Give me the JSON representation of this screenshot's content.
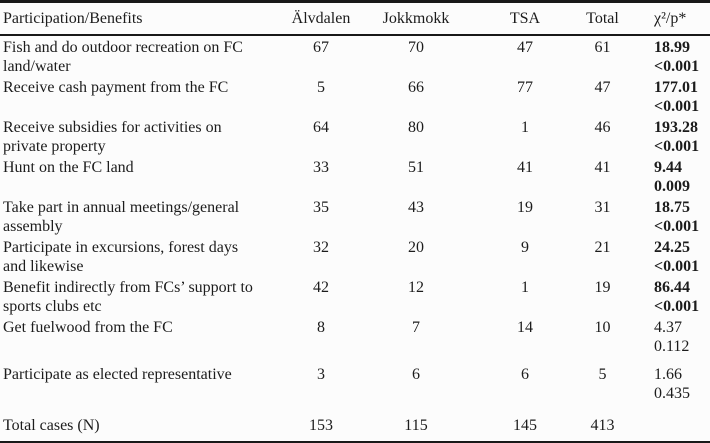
{
  "table": {
    "columns": [
      "Participation/Benefits",
      "Älvdalen",
      "Jokkmokk",
      "TSA",
      "Total",
      "χ²/p*"
    ],
    "rows": [
      {
        "label1": "Fish and do outdoor recreation on FC",
        "label2": "land/water",
        "alvdalen": "67",
        "jokkmokk": "70",
        "tsa": "47",
        "total": "61",
        "chi": "18.99",
        "p": "<0.001",
        "bold": true
      },
      {
        "label1": "Receive cash payment from the FC",
        "label2": "",
        "alvdalen": "5",
        "jokkmokk": "66",
        "tsa": "77",
        "total": "47",
        "chi": "177.01",
        "p": "<0.001",
        "bold": true
      },
      {
        "label1": "Receive subsidies for activities on",
        "label2": "private property",
        "alvdalen": "64",
        "jokkmokk": "80",
        "tsa": "1",
        "total": "46",
        "chi": "193.28",
        "p": "<0.001",
        "bold": true
      },
      {
        "label1": "Hunt on the FC land",
        "label2": "",
        "alvdalen": "33",
        "jokkmokk": "51",
        "tsa": "41",
        "total": "41",
        "chi": "9.44",
        "p": "0.009",
        "bold": true
      },
      {
        "label1": "Take part in annual meetings/general",
        "label2": "assembly",
        "alvdalen": "35",
        "jokkmokk": "43",
        "tsa": "19",
        "total": "31",
        "chi": "18.75",
        "p": "<0.001",
        "bold": true
      },
      {
        "label1": "Participate in excursions, forest days",
        "label2": "and likewise",
        "alvdalen": "32",
        "jokkmokk": "20",
        "tsa": "9",
        "total": "21",
        "chi": "24.25",
        "p": "<0.001",
        "bold": true
      },
      {
        "label1": "Benefit indirectly from FCs’ support to",
        "label2": "sports clubs etc",
        "alvdalen": "42",
        "jokkmokk": "12",
        "tsa": "1",
        "total": "19",
        "chi": "86.44",
        "p": "<0.001",
        "bold": true
      },
      {
        "label1": "Get fuelwood from the FC",
        "label2": "",
        "alvdalen": "8",
        "jokkmokk": "7",
        "tsa": "14",
        "total": "10",
        "chi": "4.37",
        "p": "0.112",
        "bold": false
      },
      {
        "label1": "Participate as elected representative",
        "label2": "",
        "alvdalen": "3",
        "jokkmokk": "6",
        "tsa": "6",
        "total": "5",
        "chi": "1.66",
        "p": "0.435",
        "bold": false
      }
    ],
    "footer": {
      "label": "Total cases (N)",
      "alvdalen": "153",
      "jokkmokk": "115",
      "tsa": "145",
      "total": "413"
    }
  },
  "colors": {
    "background": "#fcfcfc",
    "text": "#1c1c1c",
    "rule": "#181818"
  }
}
